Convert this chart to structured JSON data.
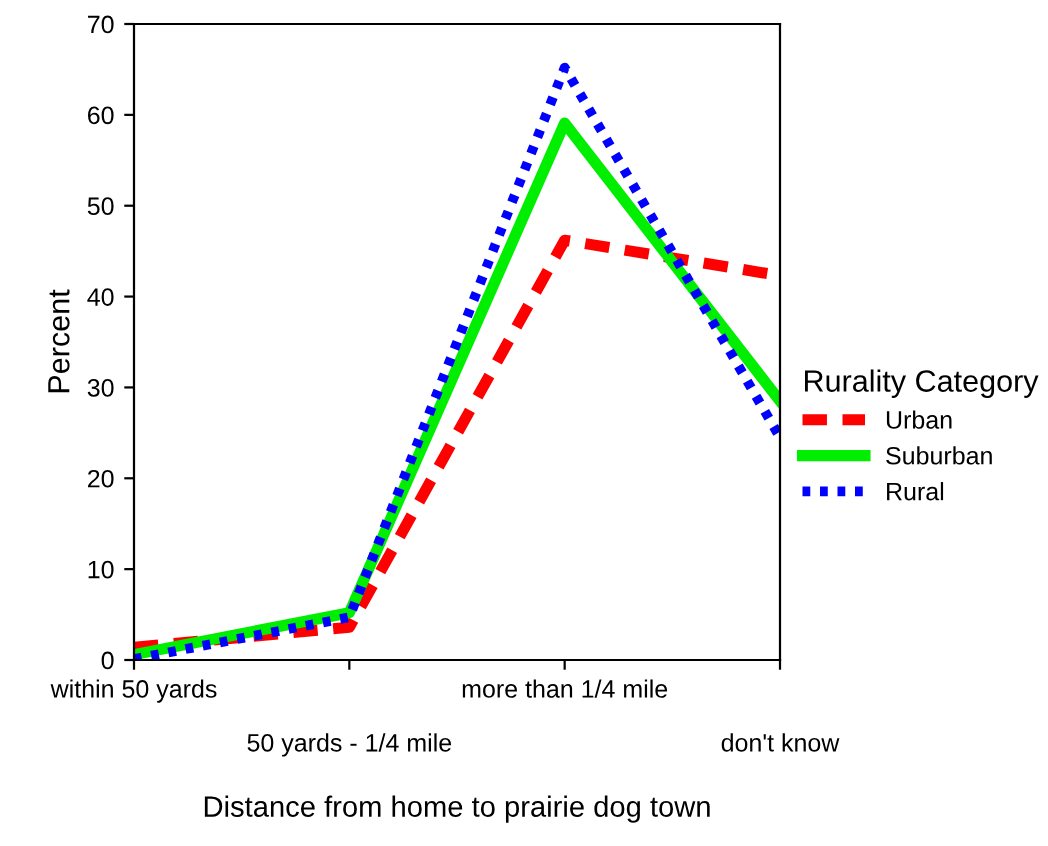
{
  "chart_data": {
    "type": "line",
    "xlabel": "Distance from home to prairie dog town",
    "ylabel": "Percent",
    "legend_title": "Rurality Category",
    "legend": "right",
    "grid": false,
    "categories": [
      "within 50 yards",
      "50 yards - 1/4 mile",
      "more than 1/4 mile",
      "don't know"
    ],
    "ylim": [
      0,
      70
    ],
    "yticks": [
      0,
      10,
      20,
      30,
      40,
      50,
      60,
      70
    ],
    "series": [
      {
        "name": "Urban",
        "color": "#ff0000",
        "line_style": "dashed",
        "values": [
          1.4,
          3.6,
          46.2,
          42.3
        ]
      },
      {
        "name": "Suburban",
        "color": "#00ee00",
        "line_style": "solid",
        "values": [
          0.6,
          5.2,
          59.1,
          28.5
        ]
      },
      {
        "name": "Rural",
        "color": "#0000ff",
        "line_style": "dotted",
        "values": [
          0.1,
          4.7,
          65.2,
          24.5
        ]
      }
    ]
  }
}
